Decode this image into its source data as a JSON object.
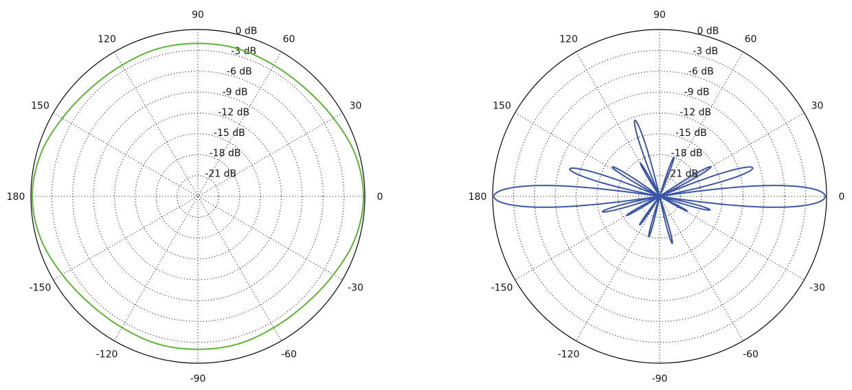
{
  "chart_data": [
    {
      "type": "polar",
      "radial_unit": "dB",
      "radial_range": [
        -24,
        0
      ],
      "radial_ticks": [
        "0 dB",
        "-3 dB",
        "-6 dB",
        "-9 dB",
        "-12 dB",
        "-15 dB",
        "-18 dB",
        "-21 dB"
      ],
      "angle_ticks": [
        "0",
        "30",
        "60",
        "90",
        "120",
        "150",
        "180",
        "-150",
        "-120",
        "-90",
        "-60",
        "-30"
      ],
      "angle_tick_values": [
        0,
        30,
        60,
        90,
        120,
        150,
        180,
        -150,
        -120,
        -90,
        -60,
        -30
      ],
      "grid": true,
      "series": [
        {
          "color": "#5ab532",
          "theta_deg": [
            0,
            15,
            30,
            45,
            60,
            75,
            90,
            105,
            120,
            135,
            150,
            165,
            180,
            195,
            210,
            225,
            240,
            255,
            270,
            285,
            300,
            315,
            330,
            345
          ],
          "r_db": [
            -0.2,
            -0.6,
            -1.5,
            -2.1,
            -2.2,
            -2.0,
            -2.0,
            -2.0,
            -2.2,
            -2.1,
            -1.5,
            -0.6,
            -0.2,
            -0.6,
            -1.5,
            -2.1,
            -2.2,
            -2.0,
            -2.0,
            -2.0,
            -2.2,
            -2.1,
            -1.5,
            -0.6
          ]
        }
      ]
    },
    {
      "type": "polar",
      "radial_unit": "dB",
      "radial_range": [
        -24,
        0
      ],
      "radial_ticks": [
        "0 dB",
        "-3 dB",
        "-6 dB",
        "-9 dB",
        "-12 dB",
        "-15 dB",
        "-18 dB",
        "-21 dB"
      ],
      "angle_ticks": [
        "0",
        "30",
        "60",
        "90",
        "120",
        "150",
        "180",
        "-150",
        "-120",
        "-90",
        "-60",
        "-30"
      ],
      "angle_tick_values": [
        0,
        30,
        60,
        90,
        120,
        150,
        180,
        -150,
        -120,
        -90,
        -60,
        -30
      ],
      "grid": true,
      "series": [
        {
          "color": "#3a55a8",
          "lobes": [
            {
              "center_deg": 0,
              "peak_db": -0.2,
              "width_deg": 10
            },
            {
              "center_deg": 180,
              "peak_db": -0.2,
              "width_deg": 10
            },
            {
              "center_deg": 17,
              "peak_db": -10.0,
              "width_deg": 8
            },
            {
              "center_deg": 163,
              "peak_db": -10.5,
              "width_deg": 8
            },
            {
              "center_deg": 30,
              "peak_db": -15.5,
              "width_deg": 7
            },
            {
              "center_deg": 148,
              "peak_db": -16.0,
              "width_deg": 7
            },
            {
              "center_deg": 70,
              "peak_db": -18.0,
              "width_deg": 6
            },
            {
              "center_deg": 108,
              "peak_db": -12.5,
              "width_deg": 7
            },
            {
              "center_deg": 120,
              "peak_db": -18.5,
              "width_deg": 6
            },
            {
              "center_deg": -15,
              "peak_db": -16.5,
              "width_deg": 7
            },
            {
              "center_deg": -165,
              "peak_db": -15.5,
              "width_deg": 7
            },
            {
              "center_deg": -28,
              "peak_db": -19.5,
              "width_deg": 6
            },
            {
              "center_deg": -150,
              "peak_db": -18.5,
              "width_deg": 6
            },
            {
              "center_deg": -75,
              "peak_db": -17.0,
              "width_deg": 6
            },
            {
              "center_deg": -105,
              "peak_db": -18.0,
              "width_deg": 6
            },
            {
              "center_deg": -125,
              "peak_db": -19.0,
              "width_deg": 6
            }
          ]
        }
      ]
    }
  ]
}
